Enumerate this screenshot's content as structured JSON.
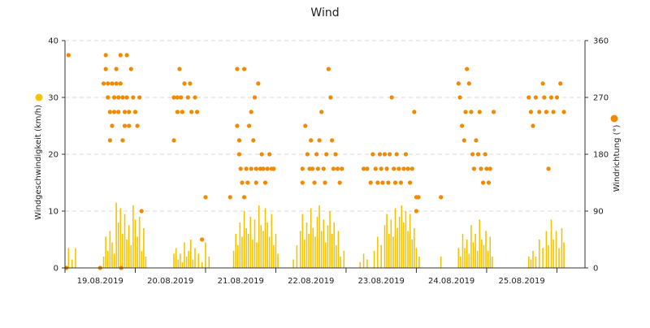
{
  "chart_data": {
    "type": "scatter",
    "title": "Wind",
    "x_tick_labels": [
      "19.08.2019",
      "20.08.2019",
      "21.08.2019",
      "22.08.2019",
      "23.08.2019",
      "24.08.2019",
      "25.08.2019"
    ],
    "y_left": {
      "label": "Windgeschwindigkeit (km/h)",
      "ticks": [
        0,
        10,
        20,
        30,
        40
      ],
      "range": [
        0,
        40
      ],
      "color": "#f5c400"
    },
    "y_right": {
      "label": "Windrichtung (°)",
      "ticks": [
        0,
        90,
        180,
        270,
        360
      ],
      "range": [
        0,
        360
      ],
      "color": "#f08a00"
    },
    "grid": "horizontal-dashed",
    "x_range_days": [
      0,
      7.4
    ],
    "series": [
      {
        "kind": "speed-bars",
        "axis": "left",
        "color": "#f5c400",
        "points": [
          [
            0.05,
            3.5
          ],
          [
            0.1,
            1.5
          ],
          [
            0.15,
            3.5
          ],
          [
            0.55,
            2.0
          ],
          [
            0.58,
            5.5
          ],
          [
            0.61,
            3.0
          ],
          [
            0.64,
            6.5
          ],
          [
            0.67,
            4.5
          ],
          [
            0.7,
            2.5
          ],
          [
            0.73,
            11.5
          ],
          [
            0.76,
            8.0
          ],
          [
            0.79,
            10.5
          ],
          [
            0.82,
            6.0
          ],
          [
            0.85,
            9.5
          ],
          [
            0.88,
            5.0
          ],
          [
            0.91,
            7.5
          ],
          [
            0.94,
            4.0
          ],
          [
            0.97,
            11.0
          ],
          [
            1.0,
            8.5
          ],
          [
            1.03,
            5.5
          ],
          [
            1.06,
            9.0
          ],
          [
            1.09,
            3.0
          ],
          [
            1.12,
            7.0
          ],
          [
            1.15,
            2.0
          ],
          [
            1.55,
            2.5
          ],
          [
            1.58,
            3.5
          ],
          [
            1.61,
            1.5
          ],
          [
            1.64,
            2.5
          ],
          [
            1.67,
            1.0
          ],
          [
            1.7,
            4.5
          ],
          [
            1.73,
            2.0
          ],
          [
            1.76,
            3.0
          ],
          [
            1.79,
            5.0
          ],
          [
            1.82,
            1.5
          ],
          [
            1.85,
            3.5
          ],
          [
            1.9,
            2.5
          ],
          [
            1.95,
            1.0
          ],
          [
            2.0,
            4.5
          ],
          [
            2.05,
            2.0
          ],
          [
            2.4,
            3.0
          ],
          [
            2.43,
            6.0
          ],
          [
            2.46,
            4.0
          ],
          [
            2.49,
            8.0
          ],
          [
            2.52,
            5.5
          ],
          [
            2.55,
            10.0
          ],
          [
            2.58,
            7.0
          ],
          [
            2.61,
            6.0
          ],
          [
            2.64,
            9.0
          ],
          [
            2.67,
            5.0
          ],
          [
            2.7,
            8.5
          ],
          [
            2.73,
            4.5
          ],
          [
            2.76,
            11.0
          ],
          [
            2.79,
            7.5
          ],
          [
            2.82,
            6.5
          ],
          [
            2.85,
            10.5
          ],
          [
            2.88,
            8.0
          ],
          [
            2.91,
            5.5
          ],
          [
            2.94,
            9.5
          ],
          [
            2.97,
            4.0
          ],
          [
            3.0,
            6.0
          ],
          [
            3.03,
            2.5
          ],
          [
            3.25,
            1.5
          ],
          [
            3.3,
            4.0
          ],
          [
            3.35,
            6.5
          ],
          [
            3.38,
            9.5
          ],
          [
            3.41,
            5.0
          ],
          [
            3.44,
            8.0
          ],
          [
            3.47,
            6.0
          ],
          [
            3.5,
            10.5
          ],
          [
            3.53,
            7.0
          ],
          [
            3.56,
            5.5
          ],
          [
            3.59,
            9.0
          ],
          [
            3.62,
            11.0
          ],
          [
            3.65,
            6.5
          ],
          [
            3.68,
            8.5
          ],
          [
            3.71,
            4.5
          ],
          [
            3.74,
            7.5
          ],
          [
            3.77,
            10.0
          ],
          [
            3.8,
            6.0
          ],
          [
            3.83,
            8.0
          ],
          [
            3.86,
            4.0
          ],
          [
            3.89,
            6.5
          ],
          [
            3.92,
            2.0
          ],
          [
            3.97,
            3.0
          ],
          [
            4.2,
            1.0
          ],
          [
            4.25,
            2.5
          ],
          [
            4.3,
            1.5
          ],
          [
            4.4,
            3.0
          ],
          [
            4.45,
            5.5
          ],
          [
            4.5,
            4.0
          ],
          [
            4.55,
            7.5
          ],
          [
            4.58,
            9.5
          ],
          [
            4.61,
            6.0
          ],
          [
            4.64,
            8.5
          ],
          [
            4.67,
            5.5
          ],
          [
            4.7,
            10.5
          ],
          [
            4.73,
            7.0
          ],
          [
            4.76,
            9.0
          ],
          [
            4.79,
            11.0
          ],
          [
            4.82,
            8.0
          ],
          [
            4.85,
            10.0
          ],
          [
            4.88,
            6.5
          ],
          [
            4.91,
            9.5
          ],
          [
            4.94,
            5.0
          ],
          [
            4.97,
            7.0
          ],
          [
            5.0,
            3.5
          ],
          [
            5.04,
            2.0
          ],
          [
            5.35,
            2.0
          ],
          [
            5.6,
            3.5
          ],
          [
            5.63,
            2.0
          ],
          [
            5.66,
            6.0
          ],
          [
            5.69,
            3.5
          ],
          [
            5.72,
            5.0
          ],
          [
            5.75,
            2.5
          ],
          [
            5.78,
            7.5
          ],
          [
            5.81,
            4.5
          ],
          [
            5.84,
            6.0
          ],
          [
            5.87,
            3.0
          ],
          [
            5.9,
            8.5
          ],
          [
            5.93,
            5.0
          ],
          [
            5.96,
            4.0
          ],
          [
            5.99,
            6.5
          ],
          [
            6.02,
            3.0
          ],
          [
            6.05,
            5.5
          ],
          [
            6.08,
            2.0
          ],
          [
            6.6,
            2.0
          ],
          [
            6.63,
            1.5
          ],
          [
            6.66,
            3.0
          ],
          [
            6.7,
            2.0
          ],
          [
            6.75,
            5.0
          ],
          [
            6.8,
            3.5
          ],
          [
            6.85,
            6.5
          ],
          [
            6.88,
            4.0
          ],
          [
            6.92,
            8.5
          ],
          [
            6.95,
            5.0
          ],
          [
            6.99,
            6.5
          ],
          [
            7.03,
            3.5
          ],
          [
            7.07,
            7.0
          ],
          [
            7.1,
            4.5
          ]
        ]
      },
      {
        "kind": "direction-dots",
        "axis": "right",
        "color": "#f08a00",
        "points": [
          [
            0.05,
            337
          ],
          [
            0.02,
            0
          ],
          [
            0.5,
            0
          ],
          [
            0.8,
            0
          ],
          [
            0.55,
            292
          ],
          [
            0.58,
            337
          ],
          [
            0.58,
            315
          ],
          [
            0.61,
            292
          ],
          [
            0.61,
            270
          ],
          [
            0.64,
            247
          ],
          [
            0.64,
            202
          ],
          [
            0.67,
            292
          ],
          [
            0.67,
            225
          ],
          [
            0.7,
            270
          ],
          [
            0.7,
            247
          ],
          [
            0.73,
            315
          ],
          [
            0.73,
            292
          ],
          [
            0.76,
            270
          ],
          [
            0.76,
            247
          ],
          [
            0.79,
            337
          ],
          [
            0.79,
            292
          ],
          [
            0.82,
            270
          ],
          [
            0.82,
            202
          ],
          [
            0.85,
            247
          ],
          [
            0.85,
            225
          ],
          [
            0.88,
            337
          ],
          [
            0.88,
            270
          ],
          [
            0.91,
            247
          ],
          [
            0.91,
            225
          ],
          [
            0.94,
            315
          ],
          [
            0.97,
            270
          ],
          [
            1.0,
            247
          ],
          [
            1.03,
            225
          ],
          [
            1.06,
            270
          ],
          [
            1.09,
            90
          ],
          [
            1.55,
            270
          ],
          [
            1.55,
            202
          ],
          [
            1.6,
            270
          ],
          [
            1.6,
            247
          ],
          [
            1.63,
            315
          ],
          [
            1.65,
            270
          ],
          [
            1.67,
            247
          ],
          [
            1.7,
            292
          ],
          [
            1.75,
            270
          ],
          [
            1.78,
            292
          ],
          [
            1.8,
            247
          ],
          [
            1.85,
            270
          ],
          [
            1.88,
            247
          ],
          [
            2.0,
            112
          ],
          [
            1.95,
            45
          ],
          [
            2.35,
            112
          ],
          [
            2.45,
            315
          ],
          [
            2.45,
            225
          ],
          [
            2.48,
            202
          ],
          [
            2.48,
            180
          ],
          [
            2.5,
            157
          ],
          [
            2.52,
            135
          ],
          [
            2.55,
            315
          ],
          [
            2.55,
            112
          ],
          [
            2.58,
            157
          ],
          [
            2.6,
            135
          ],
          [
            2.62,
            225
          ],
          [
            2.65,
            247
          ],
          [
            2.65,
            157
          ],
          [
            2.68,
            202
          ],
          [
            2.7,
            270
          ],
          [
            2.72,
            157
          ],
          [
            2.72,
            135
          ],
          [
            2.75,
            292
          ],
          [
            2.78,
            157
          ],
          [
            2.8,
            180
          ],
          [
            2.82,
            157
          ],
          [
            2.85,
            135
          ],
          [
            2.88,
            157
          ],
          [
            2.91,
            180
          ],
          [
            2.94,
            157
          ],
          [
            2.97,
            157
          ],
          [
            3.38,
            135
          ],
          [
            3.38,
            157
          ],
          [
            3.42,
            225
          ],
          [
            3.45,
            180
          ],
          [
            3.48,
            157
          ],
          [
            3.5,
            202
          ],
          [
            3.52,
            157
          ],
          [
            3.55,
            135
          ],
          [
            3.58,
            180
          ],
          [
            3.6,
            157
          ],
          [
            3.62,
            202
          ],
          [
            3.65,
            247
          ],
          [
            3.68,
            157
          ],
          [
            3.7,
            135
          ],
          [
            3.72,
            180
          ],
          [
            3.75,
            315
          ],
          [
            3.78,
            270
          ],
          [
            3.8,
            202
          ],
          [
            3.82,
            157
          ],
          [
            3.85,
            180
          ],
          [
            3.88,
            157
          ],
          [
            3.91,
            135
          ],
          [
            3.94,
            157
          ],
          [
            4.25,
            157
          ],
          [
            4.3,
            157
          ],
          [
            4.35,
            135
          ],
          [
            4.38,
            180
          ],
          [
            4.42,
            157
          ],
          [
            4.45,
            135
          ],
          [
            4.48,
            180
          ],
          [
            4.5,
            157
          ],
          [
            4.52,
            135
          ],
          [
            4.55,
            180
          ],
          [
            4.58,
            157
          ],
          [
            4.6,
            135
          ],
          [
            4.62,
            180
          ],
          [
            4.65,
            270
          ],
          [
            4.68,
            157
          ],
          [
            4.7,
            135
          ],
          [
            4.72,
            180
          ],
          [
            4.75,
            157
          ],
          [
            4.78,
            135
          ],
          [
            4.82,
            157
          ],
          [
            4.85,
            180
          ],
          [
            4.88,
            157
          ],
          [
            4.91,
            135
          ],
          [
            4.94,
            157
          ],
          [
            4.97,
            247
          ],
          [
            5.0,
            90
          ],
          [
            5.03,
            112
          ],
          [
            5.0,
            112
          ],
          [
            5.35,
            112
          ],
          [
            5.6,
            292
          ],
          [
            5.62,
            270
          ],
          [
            5.65,
            225
          ],
          [
            5.68,
            202
          ],
          [
            5.7,
            247
          ],
          [
            5.72,
            315
          ],
          [
            5.75,
            292
          ],
          [
            5.78,
            247
          ],
          [
            5.8,
            180
          ],
          [
            5.82,
            157
          ],
          [
            5.85,
            202
          ],
          [
            5.88,
            180
          ],
          [
            5.9,
            247
          ],
          [
            5.92,
            157
          ],
          [
            5.95,
            135
          ],
          [
            5.98,
            180
          ],
          [
            6.0,
            157
          ],
          [
            6.03,
            135
          ],
          [
            6.05,
            157
          ],
          [
            6.1,
            247
          ],
          [
            6.6,
            270
          ],
          [
            6.63,
            247
          ],
          [
            6.66,
            225
          ],
          [
            6.7,
            270
          ],
          [
            6.75,
            247
          ],
          [
            6.8,
            292
          ],
          [
            6.82,
            270
          ],
          [
            6.85,
            247
          ],
          [
            6.88,
            157
          ],
          [
            6.92,
            270
          ],
          [
            6.95,
            247
          ],
          [
            7.0,
            270
          ],
          [
            7.05,
            292
          ],
          [
            7.1,
            247
          ]
        ]
      }
    ]
  }
}
